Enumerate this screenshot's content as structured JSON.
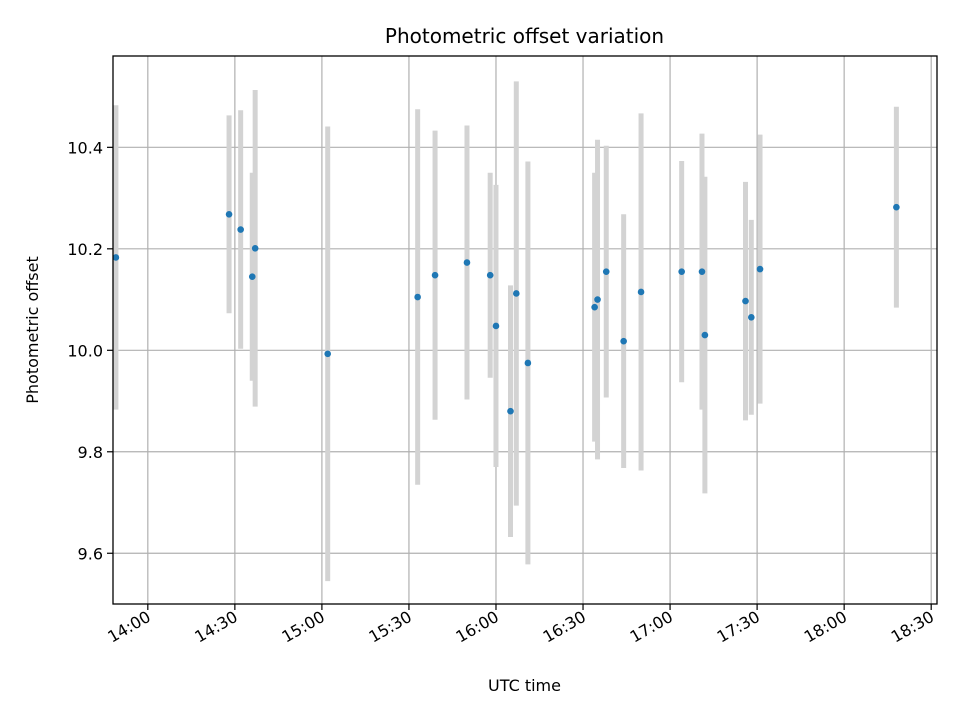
{
  "chart_data": {
    "type": "scatter",
    "title": "Photometric offset variation",
    "xlabel": "UTC time",
    "ylabel": "Photometric offset",
    "grid": true,
    "xlim": [
      "13:48",
      "18:32"
    ],
    "ylim": [
      9.5,
      10.58
    ],
    "x_ticks": [
      "14:00",
      "14:30",
      "15:00",
      "15:30",
      "16:00",
      "16:30",
      "17:00",
      "17:30",
      "18:00",
      "18:30"
    ],
    "y_ticks": [
      9.6,
      9.8,
      10.0,
      10.2,
      10.4
    ],
    "point_color": "#1f77b4",
    "errorbar_color": "#d3d3d3",
    "points": [
      {
        "time": "13:49",
        "value": 10.183,
        "error": 0.3
      },
      {
        "time": "14:28",
        "value": 10.268,
        "error": 0.195
      },
      {
        "time": "14:32",
        "value": 10.238,
        "error": 0.235
      },
      {
        "time": "14:36",
        "value": 10.145,
        "error": 0.205
      },
      {
        "time": "14:37",
        "value": 10.201,
        "error": 0.312
      },
      {
        "time": "15:02",
        "value": 9.993,
        "error": 0.448
      },
      {
        "time": "15:33",
        "value": 10.105,
        "error": 0.37
      },
      {
        "time": "15:39",
        "value": 10.148,
        "error": 0.285
      },
      {
        "time": "15:50",
        "value": 10.173,
        "error": 0.27
      },
      {
        "time": "15:58",
        "value": 10.148,
        "error": 0.202
      },
      {
        "time": "16:00",
        "value": 10.048,
        "error": 0.278
      },
      {
        "time": "16:05",
        "value": 9.88,
        "error": 0.248
      },
      {
        "time": "16:07",
        "value": 10.112,
        "error": 0.418
      },
      {
        "time": "16:11",
        "value": 9.975,
        "error": 0.397
      },
      {
        "time": "16:34",
        "value": 10.085,
        "error": 0.265
      },
      {
        "time": "16:35",
        "value": 10.1,
        "error": 0.315
      },
      {
        "time": "16:38",
        "value": 10.155,
        "error": 0.248
      },
      {
        "time": "16:44",
        "value": 10.018,
        "error": 0.25
      },
      {
        "time": "16:50",
        "value": 10.115,
        "error": 0.352
      },
      {
        "time": "17:04",
        "value": 10.155,
        "error": 0.218
      },
      {
        "time": "17:11",
        "value": 10.155,
        "error": 0.272
      },
      {
        "time": "17:12",
        "value": 10.03,
        "error": 0.312
      },
      {
        "time": "17:26",
        "value": 10.097,
        "error": 0.235
      },
      {
        "time": "17:28",
        "value": 10.065,
        "error": 0.192
      },
      {
        "time": "17:31",
        "value": 10.16,
        "error": 0.265
      },
      {
        "time": "18:18",
        "value": 10.282,
        "error": 0.198
      }
    ]
  }
}
